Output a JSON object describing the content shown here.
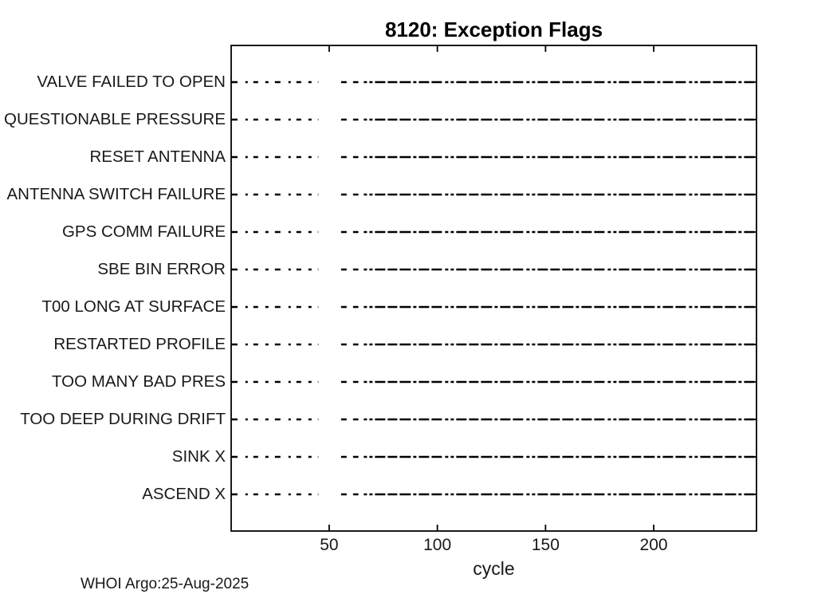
{
  "title": "8120: Exception Flags",
  "footer": {
    "text": "WHOI Argo:25-Aug-2025"
  },
  "chart_data": {
    "type": "line",
    "title": "8120: Exception Flags",
    "xlabel": "cycle",
    "ylabel": "",
    "x_ticks": [
      50,
      100,
      150,
      200
    ],
    "xlim": [
      5,
      247
    ],
    "grid": false,
    "legend": null,
    "background_color": "#ffffff",
    "line_color": "#000000",
    "text_color": "#191919",
    "categories": [
      "VALVE FAILED TO OPEN",
      "QUESTIONABLE PRESSURE",
      "RESET ANTENNA",
      "ANTENNA SWITCH FAILURE",
      "GPS COMM FAILURE",
      "SBE BIN ERROR",
      "T00 LONG AT SURFACE",
      "RESTARTED PROFILE",
      "TOO MANY BAD PRES",
      "TOO DEEP DURING DRIFT",
      "SINK X",
      "ASCEND X"
    ],
    "series_note": "Every flag row shows the identical horizontal dashed event trace across the cycle axis: sparse dashes over early cycles, a gap, two isolated dashes, then a dense dash-dot run to the final cycle.",
    "segments_cycles": [
      {
        "from": 5,
        "to": 45,
        "style": "sparse-dashed"
      },
      {
        "from": 55.5,
        "to": 63.5,
        "style": "dashed"
      },
      {
        "from": 66,
        "to": 247,
        "style": "dense-dash-dot"
      }
    ]
  }
}
